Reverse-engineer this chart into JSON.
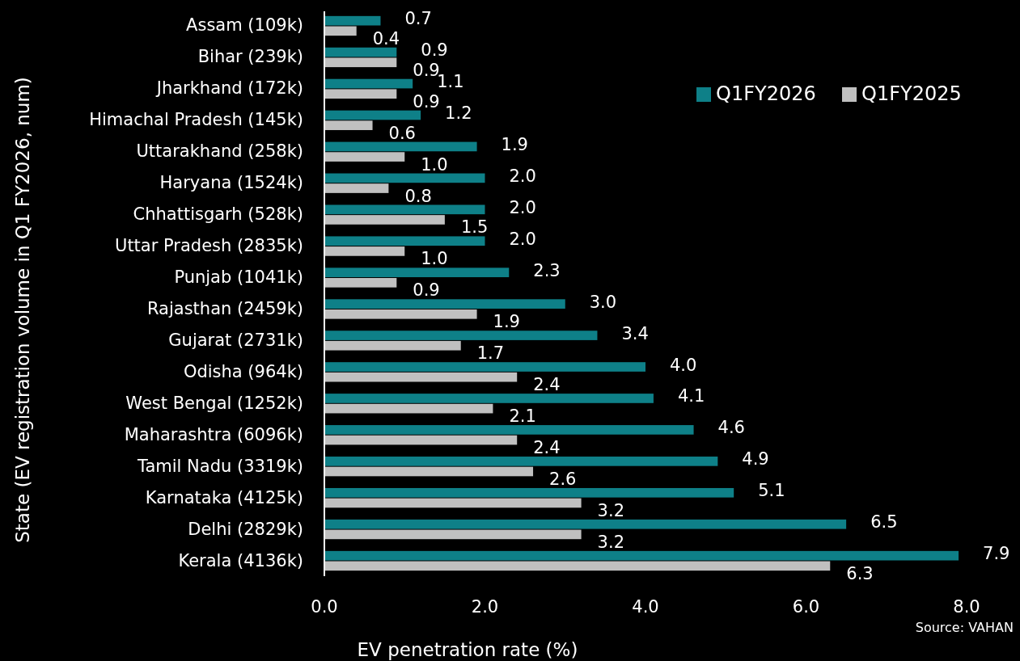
{
  "chart_data": {
    "type": "bar",
    "orientation": "horizontal",
    "xlabel": "EV penetration rate (%)",
    "ylabel": "State (EV registration volume in Q1 FY2026, num)",
    "categories": [
      "Assam (109k)",
      "Bihar (239k)",
      "Jharkhand (172k)",
      "Himachal Pradesh (145k)",
      "Uttarakhand (258k)",
      "Haryana (1524k)",
      "Chhattisgarh (528k)",
      "Uttar Pradesh (2835k)",
      "Punjab (1041k)",
      "Rajasthan (2459k)",
      "Gujarat (2731k)",
      "Odisha (964k)",
      "West Bengal (1252k)",
      "Maharashtra (6096k)",
      "Tamil Nadu (3319k)",
      "Karnataka (4125k)",
      "Delhi (2829k)",
      "Kerala (4136k)"
    ],
    "series": [
      {
        "name": "Q1FY2026",
        "color": "#0e8088",
        "values": [
          0.7,
          0.9,
          1.1,
          1.2,
          1.9,
          2.0,
          2.0,
          2.0,
          2.3,
          3.0,
          3.4,
          4.0,
          4.1,
          4.6,
          4.9,
          5.1,
          6.5,
          7.9
        ],
        "value_labels": [
          "0.7",
          "0.9",
          "1.1",
          "1.2",
          "1.9",
          "2.0",
          "2.0",
          "2.0",
          "2.3",
          "3.0",
          "3.4",
          "4.0",
          "4.1",
          "4.6",
          "4.9",
          "5.1",
          "6.5",
          "7.9"
        ]
      },
      {
        "name": "Q1FY2025",
        "color": "#c0c0c0",
        "values": [
          0.4,
          0.9,
          0.9,
          0.6,
          1.0,
          0.8,
          1.5,
          1.0,
          0.9,
          1.9,
          1.7,
          2.4,
          2.1,
          2.4,
          2.6,
          3.2,
          3.2,
          6.3
        ],
        "value_labels": [
          "0.4",
          "0.9",
          "0.9",
          "0.6",
          "1.0",
          "0.8",
          "1.5",
          "1.0",
          "0.9",
          "1.9",
          "1.7",
          "2.4",
          "2.1",
          "2.4",
          "2.6",
          "3.2",
          "3.2",
          "6.3"
        ]
      }
    ],
    "xlim": [
      0,
      8
    ],
    "xticks": [
      {
        "value": 0,
        "label": "0.0"
      },
      {
        "value": 2,
        "label": "2.0"
      },
      {
        "value": 4,
        "label": "4.0"
      },
      {
        "value": 6,
        "label": "6.0"
      },
      {
        "value": 8,
        "label": "8.0"
      }
    ],
    "grid": false,
    "legend": "top right",
    "annotations": [
      "Source: VAHAN"
    ]
  }
}
